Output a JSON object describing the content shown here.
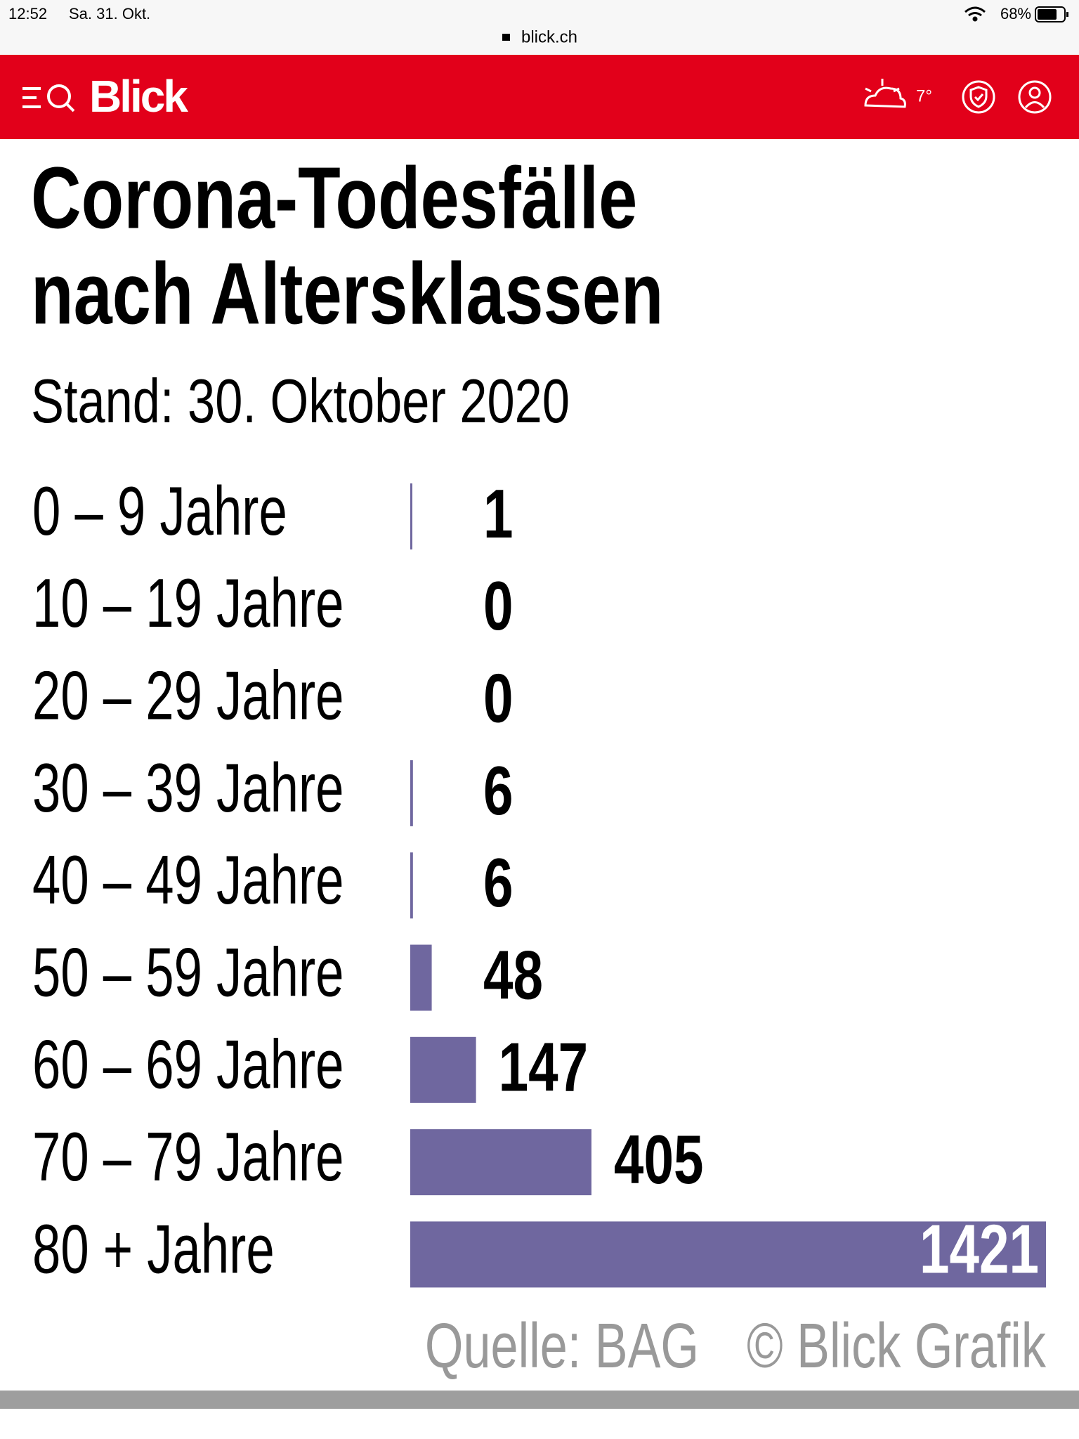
{
  "status_bar": {
    "time": "12:52",
    "date": "Sa. 31. Okt.",
    "battery": "68%",
    "url": "blick.ch"
  },
  "header": {
    "logo": "Blick",
    "temperature": "7°"
  },
  "chart_data": {
    "type": "bar",
    "orientation": "horizontal",
    "title": [
      "Corona-Todesfälle",
      "nach Altersklassen"
    ],
    "subtitle": "Stand: 30. Oktober 2020",
    "categories": [
      "0 – 9 Jahre",
      "10 – 19 Jahre",
      "20 – 29 Jahre",
      "30 – 39 Jahre",
      "40 – 49 Jahre",
      "50 – 59 Jahre",
      "60 – 69 Jahre",
      "70 – 79 Jahre",
      "80 + Jahre"
    ],
    "values": [
      1,
      0,
      0,
      6,
      6,
      48,
      147,
      405,
      1421
    ],
    "color": "#6f679f",
    "source": [
      "Quelle: BAG",
      "© Blick Grafik"
    ]
  }
}
